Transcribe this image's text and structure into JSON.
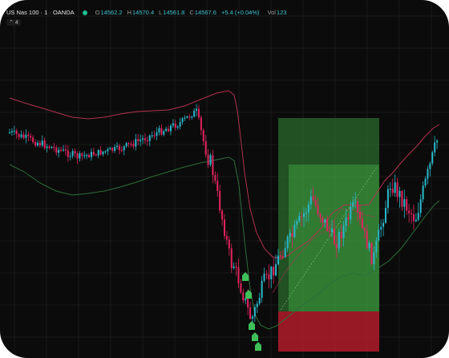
{
  "legend": {
    "symbol": "US Nas 100 · 1 · OANDA",
    "o_label": "O",
    "o_value": "14562.2",
    "h_label": "H",
    "h_value": "14570.4",
    "l_label": "L",
    "l_value": "14561.8",
    "c_label": "C",
    "c_value": "14567.6",
    "change": "+5.4 (+0.04%)",
    "vol_label": "Vol",
    "vol_value": "123",
    "collapse_count": "4"
  },
  "colors": {
    "up": "#2ab7c9",
    "down": "#e0245e",
    "upper_band": "#b1324f",
    "lower_band": "#2f6e3a",
    "profit_zone": "#2e7d32",
    "loss_zone": "#b71c2c",
    "marker": "#3fbf5a"
  },
  "chart_data": {
    "type": "candlestick",
    "overlays": [
      "bollinger-bands",
      "long-position-tool"
    ],
    "grid": true,
    "markers": 5
  }
}
